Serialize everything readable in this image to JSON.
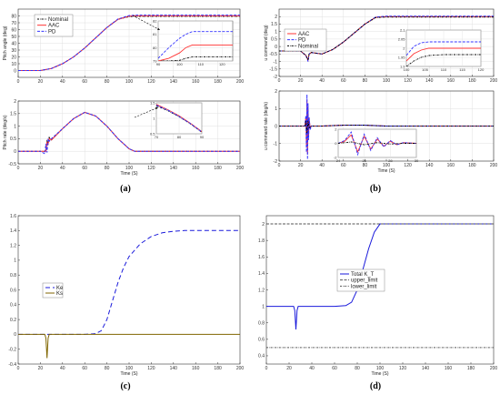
{
  "chart_data": [
    {
      "panel": "(a)",
      "type": "line",
      "ylabel": "Pitch angle (deg)",
      "xlabel": "",
      "xlim": [
        0,
        200
      ],
      "ylim": [
        -10,
        90
      ],
      "xticks": [
        0,
        20,
        40,
        60,
        80,
        100,
        120,
        140,
        160,
        180,
        200
      ],
      "yticks": [
        0,
        10,
        20,
        30,
        40,
        50,
        60,
        70,
        80
      ],
      "grid": true,
      "legend": "top-left",
      "series": [
        {
          "name": "Nominal",
          "color": "#000000",
          "dash": "2,1,0.6,1",
          "x": [
            0,
            20,
            30,
            40,
            50,
            60,
            70,
            80,
            90,
            100,
            105,
            110,
            150,
            200
          ],
          "y": [
            0,
            0,
            3,
            10,
            20,
            33,
            48,
            63,
            75,
            79,
            79.3,
            79.3,
            79.3,
            79.3
          ]
        },
        {
          "name": "AAC",
          "color": "#ff3333",
          "dash": "",
          "x": [
            0,
            20,
            30,
            40,
            50,
            60,
            70,
            80,
            90,
            100,
            105,
            110,
            150,
            200
          ],
          "y": [
            0,
            0,
            3,
            10,
            20,
            33,
            48,
            63,
            75,
            79.7,
            80.2,
            80.2,
            80.2,
            80.2
          ]
        },
        {
          "name": "PD",
          "color": "#3333ff",
          "dash": "3,1.5",
          "x": [
            0,
            20,
            30,
            40,
            50,
            60,
            70,
            80,
            90,
            100,
            105,
            110,
            150,
            200
          ],
          "y": [
            0,
            0,
            3,
            10,
            20,
            33,
            48,
            63,
            75.5,
            80.5,
            81,
            81.2,
            81.2,
            81.2
          ]
        }
      ],
      "inset": {
        "xlim": [
          90,
          125
        ],
        "ylim": [
          79,
          82
        ],
        "xticks": [
          90,
          100,
          110,
          120
        ],
        "yticks": [
          79,
          80,
          81,
          82
        ],
        "series": [
          {
            "x": [
              90,
              95,
              100,
              103,
              106,
              110,
              125
            ],
            "y": [
              79,
              79,
              79.05,
              79.2,
              79.3,
              79.3,
              79.3
            ]
          },
          {
            "x": [
              90,
              95,
              100,
              103,
              106,
              110,
              125
            ],
            "y": [
              79,
              79.2,
              79.6,
              80.0,
              80.2,
              80.2,
              80.2
            ]
          },
          {
            "x": [
              90,
              95,
              100,
              103,
              106,
              110,
              125
            ],
            "y": [
              79.2,
              80.0,
              80.7,
              81.0,
              81.2,
              81.2,
              81.2
            ]
          }
        ]
      }
    },
    {
      "panel": "(a)-rate",
      "type": "line",
      "ylabel": "Pitch rate (deg/s)",
      "xlabel": "Time (S)",
      "xlim": [
        0,
        200
      ],
      "ylim": [
        -0.5,
        2
      ],
      "xticks": [
        0,
        20,
        40,
        60,
        80,
        100,
        120,
        140,
        160,
        180,
        200
      ],
      "yticks": [
        -0.5,
        0,
        0.5,
        1,
        1.5,
        2
      ],
      "grid": true,
      "series": [
        {
          "name": "Nominal",
          "color": "#000000",
          "dash": "2,1,0.6,1",
          "x": [
            0,
            20,
            25,
            26,
            27,
            28,
            30,
            40,
            50,
            60,
            70,
            80,
            90,
            100,
            105,
            110,
            200
          ],
          "y": [
            0,
            0,
            0,
            0.4,
            0.3,
            0.55,
            0.45,
            0.9,
            1.3,
            1.55,
            1.4,
            1.0,
            0.5,
            0.1,
            0,
            0,
            0
          ]
        },
        {
          "name": "AAC",
          "color": "#ff3333",
          "dash": "",
          "x": [
            0,
            20,
            25,
            26,
            27,
            28,
            30,
            40,
            50,
            60,
            70,
            80,
            90,
            100,
            105,
            110,
            200
          ],
          "y": [
            0,
            0,
            0,
            0.35,
            0.3,
            0.5,
            0.45,
            0.9,
            1.3,
            1.55,
            1.4,
            1.0,
            0.5,
            0.1,
            0,
            0,
            0
          ]
        },
        {
          "name": "PD",
          "color": "#3333ff",
          "dash": "3,1.5",
          "x": [
            0,
            20,
            24,
            25,
            26,
            27,
            28,
            30,
            40,
            50,
            60,
            70,
            80,
            90,
            100,
            105,
            110,
            200
          ],
          "y": [
            0,
            0,
            -0.1,
            0.3,
            -0.05,
            0.5,
            0.4,
            0.5,
            0.9,
            1.3,
            1.55,
            1.4,
            1.0,
            0.5,
            0.1,
            0,
            0,
            0
          ]
        }
      ],
      "inset": {
        "xlim": [
          70,
          90
        ],
        "ylim": [
          0.5,
          1.5
        ],
        "xticks": [
          70,
          80,
          90
        ],
        "yticks": [
          0.5,
          1,
          1.5
        ],
        "series": [
          {
            "x": [
              70,
              75,
              80,
              85,
              90
            ],
            "y": [
              1.4,
              1.25,
              1.05,
              0.82,
              0.55
            ]
          },
          {
            "x": [
              70,
              75,
              80,
              85,
              90
            ],
            "y": [
              1.45,
              1.28,
              1.08,
              0.84,
              0.57
            ]
          },
          {
            "x": [
              70,
              75,
              80,
              85,
              90
            ],
            "y": [
              1.42,
              1.27,
              1.06,
              0.83,
              0.56
            ]
          }
        ]
      }
    },
    {
      "panel": "(b)",
      "type": "line",
      "ylabel": "u command (deg)",
      "xlabel": "",
      "xlim": [
        0,
        200
      ],
      "ylim": [
        -2,
        2.5
      ],
      "xticks": [
        0,
        20,
        40,
        60,
        80,
        100,
        120,
        140,
        160,
        180,
        200
      ],
      "yticks": [
        -2,
        -1.5,
        -1,
        -0.5,
        0,
        0.5,
        1,
        1.5,
        2
      ],
      "grid": true,
      "legend": "top-left",
      "series": [
        {
          "name": "AAC",
          "color": "#ff3333",
          "dash": "",
          "x": [
            0,
            20,
            25,
            27,
            28,
            30,
            40,
            50,
            60,
            70,
            80,
            90,
            100,
            110,
            200
          ],
          "y": [
            -0.3,
            -0.3,
            -0.6,
            -0.9,
            -0.5,
            -0.4,
            -0.5,
            -0.2,
            0.3,
            0.9,
            1.5,
            1.95,
            2.0,
            2.0,
            2.0
          ]
        },
        {
          "name": "PD",
          "color": "#3333ff",
          "dash": "3,1.5",
          "x": [
            0,
            20,
            25,
            27,
            28,
            30,
            40,
            50,
            60,
            70,
            80,
            90,
            100,
            110,
            200
          ],
          "y": [
            -0.3,
            -0.3,
            -0.6,
            -1.0,
            -0.5,
            -0.4,
            -0.5,
            -0.2,
            0.3,
            0.9,
            1.5,
            1.97,
            2.03,
            2.03,
            2.03
          ]
        },
        {
          "name": "Nominal",
          "color": "#000000",
          "dash": "2,1,0.6,1",
          "x": [
            0,
            20,
            25,
            27,
            28,
            30,
            40,
            50,
            60,
            70,
            80,
            90,
            100,
            110,
            200
          ],
          "y": [
            -0.3,
            -0.3,
            -0.6,
            -0.9,
            -0.5,
            -0.4,
            -0.5,
            -0.2,
            0.3,
            0.9,
            1.5,
            1.93,
            1.97,
            1.97,
            1.97
          ]
        }
      ],
      "inset": {
        "xlim": [
          100,
          120
        ],
        "ylim": [
          1.9,
          2.1
        ],
        "xticks": [
          100,
          105,
          110,
          115,
          120
        ],
        "yticks": [
          1.9,
          1.95,
          2,
          2.05,
          2.1
        ],
        "series": [
          {
            "x": [
              100,
              102,
              104,
              106,
              110,
              120
            ],
            "y": [
              1.93,
              1.97,
              1.99,
              2.0,
              2.0,
              2.0
            ]
          },
          {
            "x": [
              100,
              102,
              104,
              106,
              110,
              120
            ],
            "y": [
              1.96,
              2.01,
              2.03,
              2.035,
              2.035,
              2.035
            ]
          },
          {
            "x": [
              100,
              102,
              104,
              106,
              110,
              120
            ],
            "y": [
              1.9,
              1.93,
              1.95,
              1.96,
              1.965,
              1.965
            ]
          }
        ]
      }
    },
    {
      "panel": "(b)-rate",
      "type": "line",
      "ylabel": "u command rate (deg/s)",
      "xlabel": "Time (S)",
      "xlim": [
        0,
        200
      ],
      "ylim": [
        -2,
        2
      ],
      "xticks": [
        0,
        20,
        40,
        60,
        80,
        100,
        120,
        140,
        160,
        180,
        200
      ],
      "yticks": [
        -2,
        -1,
        0,
        1,
        2
      ],
      "grid": true,
      "series": [
        {
          "name": "AAC",
          "color": "#ff3333",
          "dash": "",
          "x": [
            0,
            24,
            25,
            25.5,
            26,
            26.5,
            27,
            27.5,
            28,
            29,
            30,
            40,
            60,
            80,
            100,
            200
          ],
          "y": [
            0,
            0,
            0.5,
            -1.2,
            1.5,
            -1.6,
            1.0,
            -0.6,
            0.4,
            -0.1,
            0,
            0,
            0.05,
            0.05,
            0,
            0
          ]
        },
        {
          "name": "PD",
          "color": "#3333ff",
          "dash": "3,1.5",
          "x": [
            0,
            24,
            25,
            25.5,
            26,
            26.5,
            27,
            27.5,
            28,
            29,
            30,
            40,
            60,
            80,
            100,
            200
          ],
          "y": [
            0,
            0,
            0.6,
            -1.5,
            1.8,
            -1.9,
            1.3,
            -0.8,
            0.5,
            -0.2,
            0,
            0,
            0.05,
            0.05,
            0,
            0
          ]
        },
        {
          "name": "Nominal",
          "color": "#000000",
          "dash": "2,1,0.6,1",
          "x": [
            0,
            24,
            25,
            26,
            27,
            28,
            30,
            40,
            60,
            80,
            100,
            200
          ],
          "y": [
            0,
            0,
            0.3,
            -0.4,
            0.3,
            -0.1,
            0,
            0,
            0.05,
            0.05,
            0,
            0
          ]
        }
      ],
      "inset": {
        "xlim": [
          24,
          30
        ],
        "ylim": [
          -2,
          2
        ],
        "xticks": [
          24,
          26,
          28,
          30
        ],
        "yticks": [
          -2,
          0,
          2
        ],
        "series": [
          {
            "x": [
              24,
              24.5,
              25,
              25.5,
              26,
              26.5,
              27,
              27.5,
              28,
              28.5,
              29,
              30
            ],
            "y": [
              0,
              0.3,
              1.2,
              -1.2,
              1.0,
              -0.8,
              0.6,
              -0.4,
              0.3,
              -0.2,
              0.1,
              0
            ]
          },
          {
            "x": [
              24,
              24.5,
              25,
              25.5,
              26,
              26.5,
              27,
              27.5,
              28,
              28.5,
              29,
              30
            ],
            "y": [
              0,
              0.4,
              1.6,
              -1.6,
              1.3,
              -1.0,
              0.8,
              -0.5,
              0.4,
              -0.2,
              0.1,
              0
            ]
          },
          {
            "x": [
              24,
              25,
              26,
              27,
              28,
              29,
              30
            ],
            "y": [
              0,
              0.2,
              -0.2,
              0.1,
              -0.1,
              0,
              0
            ]
          }
        ]
      }
    },
    {
      "panel": "(c)",
      "type": "line",
      "ylabel": "",
      "xlabel": "Time (S)",
      "xlim": [
        0,
        200
      ],
      "ylim": [
        -0.4,
        1.6
      ],
      "xticks": [
        0,
        20,
        40,
        60,
        80,
        100,
        120,
        140,
        160,
        180,
        200
      ],
      "yticks": [
        -0.4,
        -0.2,
        0,
        0.2,
        0.4,
        0.6,
        0.8,
        1,
        1.2,
        1.4,
        1.6
      ],
      "grid": false,
      "legend": "left",
      "series": [
        {
          "name": "Ke",
          "color": "#1a1adb",
          "dash": "5,3",
          "x": [
            0,
            60,
            70,
            75,
            80,
            85,
            90,
            95,
            100,
            110,
            120,
            130,
            140,
            150,
            160,
            180,
            200
          ],
          "y": [
            0,
            0,
            0.01,
            0.05,
            0.2,
            0.45,
            0.7,
            0.9,
            1.05,
            1.22,
            1.32,
            1.37,
            1.39,
            1.4,
            1.4,
            1.4,
            1.4
          ]
        },
        {
          "name": "Ks",
          "color": "#806600",
          "dash": "",
          "x": [
            0,
            24,
            25,
            26,
            27,
            28,
            30,
            200
          ],
          "y": [
            0,
            0,
            -0.05,
            -0.32,
            -0.05,
            0,
            0,
            0
          ]
        }
      ]
    },
    {
      "panel": "(d)",
      "type": "line",
      "ylabel": "",
      "xlabel": "Time (S)",
      "xlim": [
        0,
        200
      ],
      "ylim": [
        0.3,
        2.1
      ],
      "xticks": [
        0,
        20,
        40,
        60,
        80,
        100,
        120,
        140,
        160,
        180,
        200
      ],
      "yticks": [
        0.4,
        0.6,
        0.8,
        1,
        1.2,
        1.4,
        1.6,
        1.8,
        2
      ],
      "grid": false,
      "legend": "center-left",
      "series": [
        {
          "name": "Total K_T",
          "color": "#1a1adb",
          "dash": "",
          "x": [
            0,
            24,
            25,
            26,
            27,
            28,
            30,
            60,
            70,
            75,
            80,
            85,
            90,
            95,
            100,
            200
          ],
          "y": [
            1,
            1,
            0.95,
            0.72,
            0.95,
            1,
            1,
            1,
            1.01,
            1.05,
            1.2,
            1.45,
            1.7,
            1.9,
            2.0,
            2.0
          ]
        },
        {
          "name": "upper_limit",
          "color": "#555555",
          "dash": "3,1.5",
          "x": [
            0,
            200
          ],
          "y": [
            2,
            2
          ]
        },
        {
          "name": "lower_limit",
          "color": "#555555",
          "dash": "2,1,0.6,1",
          "x": [
            0,
            200
          ],
          "y": [
            0.5,
            0.5
          ]
        }
      ]
    }
  ],
  "panel_labels": [
    "(a)",
    "(b)",
    "(c)",
    "(d)"
  ],
  "colors": {
    "axis": "#000000",
    "grid": "#e0e0e0",
    "nominal": "#000000",
    "aac": "#ff3333",
    "pd": "#3333ff"
  }
}
